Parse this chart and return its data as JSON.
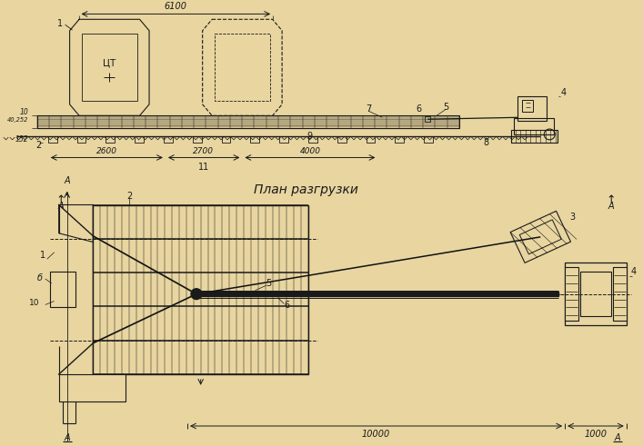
{
  "bg_color": "#e8d5a0",
  "line_color": "#1a1a1a",
  "title": "План разгрузки",
  "dim_6100": "6100",
  "dim_2600": "2600",
  "dim_2700": "2700",
  "dim_4000": "4000",
  "dim_10000": "10000",
  "dim_1000": "1000",
  "label_ct": "ЦТ",
  "figsize": [
    7.07,
    4.91
  ],
  "dpi": 100
}
